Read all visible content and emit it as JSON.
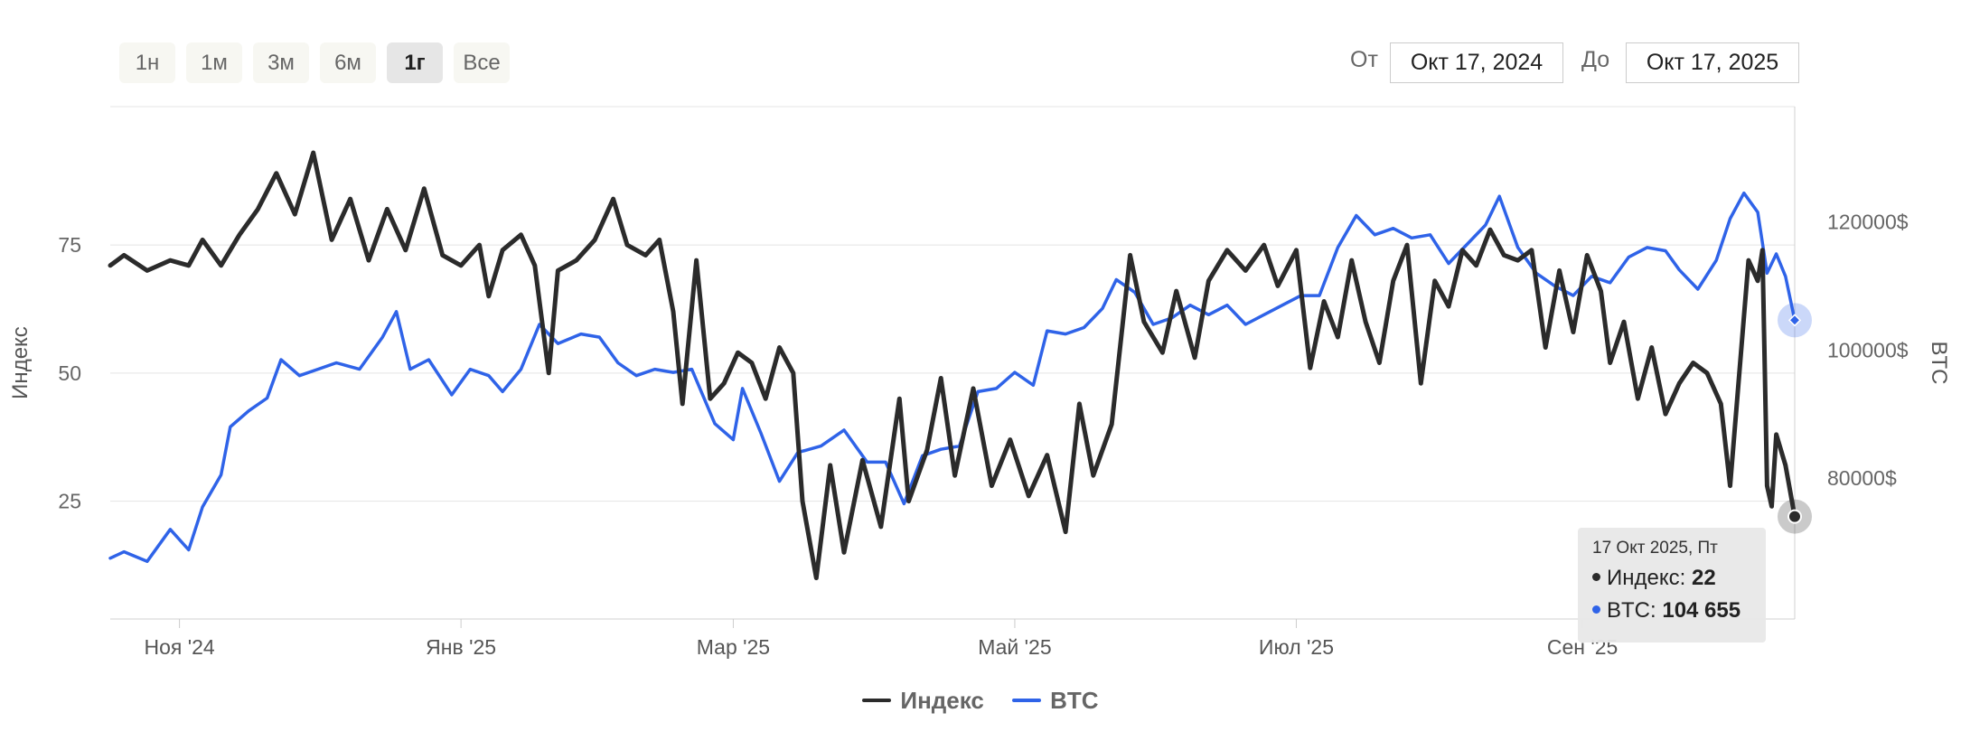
{
  "range_buttons": [
    {
      "label": "1н",
      "active": false
    },
    {
      "label": "1м",
      "active": false
    },
    {
      "label": "3м",
      "active": false
    },
    {
      "label": "6м",
      "active": false
    },
    {
      "label": "1г",
      "active": true
    },
    {
      "label": "Все",
      "active": false
    }
  ],
  "date_range": {
    "from_label": "От",
    "from_value": "Окт 17, 2024",
    "to_label": "До",
    "to_value": "Окт 17, 2025"
  },
  "colors": {
    "index": "#2b2b2b",
    "btc": "#2f63e8"
  },
  "tooltip": {
    "date": "17 Окт 2025, Пт",
    "index_label": "Индекс: ",
    "index_value": "22",
    "btc_label": "BTC: ",
    "btc_value": "104 655"
  },
  "chart_data": {
    "type": "line",
    "x_range": [
      "2024-10-17",
      "2025-10-17"
    ],
    "x_ticks": [
      {
        "date": "2024-11-01",
        "label": "Ноя '24"
      },
      {
        "date": "2025-01-01",
        "label": "Янв '25"
      },
      {
        "date": "2025-03-01",
        "label": "Мар '25"
      },
      {
        "date": "2025-05-01",
        "label": "Май '25"
      },
      {
        "date": "2025-07-01",
        "label": "Июл '25"
      },
      {
        "date": "2025-09-01",
        "label": "Сен '25"
      }
    ],
    "y_left": {
      "label": "Индекс",
      "ticks": [
        25,
        50,
        75
      ],
      "range": [
        2,
        102
      ]
    },
    "y_right": {
      "label": "BTC",
      "ticks": [
        80000,
        100000,
        120000
      ],
      "tick_labels": [
        "80000$",
        "100000$",
        "120000$"
      ],
      "range": [
        58000,
        138000
      ]
    },
    "grid": true,
    "legend": "bottom-center",
    "series": [
      {
        "name": "Индекс",
        "axis": "left",
        "points": [
          [
            "2024-10-17",
            71
          ],
          [
            "2024-10-20",
            73
          ],
          [
            "2024-10-25",
            70
          ],
          [
            "2024-10-30",
            72
          ],
          [
            "2024-11-03",
            71
          ],
          [
            "2024-11-06",
            76
          ],
          [
            "2024-11-10",
            71
          ],
          [
            "2024-11-14",
            77
          ],
          [
            "2024-11-18",
            82
          ],
          [
            "2024-11-22",
            89
          ],
          [
            "2024-11-26",
            81
          ],
          [
            "2024-11-30",
            93
          ],
          [
            "2024-12-04",
            76
          ],
          [
            "2024-12-08",
            84
          ],
          [
            "2024-12-12",
            72
          ],
          [
            "2024-12-16",
            82
          ],
          [
            "2024-12-20",
            74
          ],
          [
            "2024-12-24",
            86
          ],
          [
            "2024-12-28",
            73
          ],
          [
            "2025-01-01",
            71
          ],
          [
            "2025-01-05",
            75
          ],
          [
            "2025-01-07",
            65
          ],
          [
            "2025-01-10",
            74
          ],
          [
            "2025-01-14",
            77
          ],
          [
            "2025-01-17",
            71
          ],
          [
            "2025-01-20",
            50
          ],
          [
            "2025-01-22",
            70
          ],
          [
            "2025-01-26",
            72
          ],
          [
            "2025-01-30",
            76
          ],
          [
            "2025-02-03",
            84
          ],
          [
            "2025-02-06",
            75
          ],
          [
            "2025-02-10",
            73
          ],
          [
            "2025-02-13",
            76
          ],
          [
            "2025-02-16",
            62
          ],
          [
            "2025-02-18",
            44
          ],
          [
            "2025-02-21",
            72
          ],
          [
            "2025-02-24",
            45
          ],
          [
            "2025-02-27",
            48
          ],
          [
            "2025-03-02",
            54
          ],
          [
            "2025-03-05",
            52
          ],
          [
            "2025-03-08",
            45
          ],
          [
            "2025-03-11",
            55
          ],
          [
            "2025-03-14",
            50
          ],
          [
            "2025-03-16",
            25
          ],
          [
            "2025-03-19",
            10
          ],
          [
            "2025-03-22",
            32
          ],
          [
            "2025-03-25",
            15
          ],
          [
            "2025-03-29",
            33
          ],
          [
            "2025-04-02",
            20
          ],
          [
            "2025-04-06",
            45
          ],
          [
            "2025-04-08",
            25
          ],
          [
            "2025-04-12",
            35
          ],
          [
            "2025-04-15",
            49
          ],
          [
            "2025-04-18",
            30
          ],
          [
            "2025-04-22",
            47
          ],
          [
            "2025-04-26",
            28
          ],
          [
            "2025-04-30",
            37
          ],
          [
            "2025-05-04",
            26
          ],
          [
            "2025-05-08",
            34
          ],
          [
            "2025-05-12",
            19
          ],
          [
            "2025-05-15",
            44
          ],
          [
            "2025-05-18",
            30
          ],
          [
            "2025-05-22",
            40
          ],
          [
            "2025-05-26",
            73
          ],
          [
            "2025-05-29",
            60
          ],
          [
            "2025-06-02",
            54
          ],
          [
            "2025-06-05",
            66
          ],
          [
            "2025-06-09",
            53
          ],
          [
            "2025-06-12",
            68
          ],
          [
            "2025-06-16",
            74
          ],
          [
            "2025-06-20",
            70
          ],
          [
            "2025-06-24",
            75
          ],
          [
            "2025-06-27",
            67
          ],
          [
            "2025-07-01",
            74
          ],
          [
            "2025-07-04",
            51
          ],
          [
            "2025-07-07",
            64
          ],
          [
            "2025-07-10",
            57
          ],
          [
            "2025-07-13",
            72
          ],
          [
            "2025-07-16",
            60
          ],
          [
            "2025-07-19",
            52
          ],
          [
            "2025-07-22",
            68
          ],
          [
            "2025-07-25",
            75
          ],
          [
            "2025-07-28",
            48
          ],
          [
            "2025-07-31",
            68
          ],
          [
            "2025-08-03",
            63
          ],
          [
            "2025-08-06",
            74
          ],
          [
            "2025-08-09",
            71
          ],
          [
            "2025-08-12",
            78
          ],
          [
            "2025-08-15",
            73
          ],
          [
            "2025-08-18",
            72
          ],
          [
            "2025-08-21",
            74
          ],
          [
            "2025-08-24",
            55
          ],
          [
            "2025-08-27",
            70
          ],
          [
            "2025-08-30",
            58
          ],
          [
            "2025-09-02",
            73
          ],
          [
            "2025-09-05",
            66
          ],
          [
            "2025-09-07",
            52
          ],
          [
            "2025-09-10",
            60
          ],
          [
            "2025-09-13",
            45
          ],
          [
            "2025-09-16",
            55
          ],
          [
            "2025-09-19",
            42
          ],
          [
            "2025-09-22",
            48
          ],
          [
            "2025-09-25",
            52
          ],
          [
            "2025-09-28",
            50
          ],
          [
            "2025-10-01",
            44
          ],
          [
            "2025-10-03",
            28
          ],
          [
            "2025-10-05",
            50
          ],
          [
            "2025-10-07",
            72
          ],
          [
            "2025-10-09",
            68
          ],
          [
            "2025-10-10",
            74
          ],
          [
            "2025-10-11",
            28
          ],
          [
            "2025-10-12",
            24
          ],
          [
            "2025-10-13",
            38
          ],
          [
            "2025-10-15",
            32
          ],
          [
            "2025-10-17",
            22
          ]
        ]
      },
      {
        "name": "BTC",
        "axis": "right",
        "points": [
          [
            "2024-10-17",
            67500
          ],
          [
            "2024-10-20",
            68500
          ],
          [
            "2024-10-25",
            67000
          ],
          [
            "2024-10-30",
            72000
          ],
          [
            "2024-11-03",
            68800
          ],
          [
            "2024-11-06",
            75500
          ],
          [
            "2024-11-10",
            80500
          ],
          [
            "2024-11-12",
            88000
          ],
          [
            "2024-11-16",
            90500
          ],
          [
            "2024-11-20",
            92500
          ],
          [
            "2024-11-23",
            98500
          ],
          [
            "2024-11-27",
            96000
          ],
          [
            "2024-12-01",
            97000
          ],
          [
            "2024-12-05",
            98000
          ],
          [
            "2024-12-10",
            97000
          ],
          [
            "2024-12-15",
            102000
          ],
          [
            "2024-12-18",
            106000
          ],
          [
            "2024-12-21",
            97000
          ],
          [
            "2024-12-25",
            98500
          ],
          [
            "2024-12-30",
            93000
          ],
          [
            "2025-01-03",
            97000
          ],
          [
            "2025-01-07",
            96000
          ],
          [
            "2025-01-10",
            93500
          ],
          [
            "2025-01-14",
            97000
          ],
          [
            "2025-01-18",
            104000
          ],
          [
            "2025-01-22",
            101000
          ],
          [
            "2025-01-27",
            102500
          ],
          [
            "2025-01-31",
            102000
          ],
          [
            "2025-02-04",
            98000
          ],
          [
            "2025-02-08",
            96000
          ],
          [
            "2025-02-12",
            97000
          ],
          [
            "2025-02-16",
            96500
          ],
          [
            "2025-02-20",
            97000
          ],
          [
            "2025-02-25",
            88500
          ],
          [
            "2025-03-01",
            86000
          ],
          [
            "2025-03-03",
            94000
          ],
          [
            "2025-03-07",
            87000
          ],
          [
            "2025-03-11",
            79500
          ],
          [
            "2025-03-15",
            84000
          ],
          [
            "2025-03-20",
            85000
          ],
          [
            "2025-03-25",
            87500
          ],
          [
            "2025-03-30",
            82500
          ],
          [
            "2025-04-03",
            82500
          ],
          [
            "2025-04-07",
            76000
          ],
          [
            "2025-04-11",
            83500
          ],
          [
            "2025-04-15",
            84500
          ],
          [
            "2025-04-19",
            85000
          ],
          [
            "2025-04-23",
            93500
          ],
          [
            "2025-04-27",
            94000
          ],
          [
            "2025-05-01",
            96500
          ],
          [
            "2025-05-05",
            94500
          ],
          [
            "2025-05-08",
            103000
          ],
          [
            "2025-05-12",
            102500
          ],
          [
            "2025-05-16",
            103500
          ],
          [
            "2025-05-20",
            106500
          ],
          [
            "2025-05-23",
            111000
          ],
          [
            "2025-05-27",
            109000
          ],
          [
            "2025-05-31",
            104000
          ],
          [
            "2025-06-04",
            105000
          ],
          [
            "2025-06-08",
            107000
          ],
          [
            "2025-06-12",
            105500
          ],
          [
            "2025-06-16",
            107000
          ],
          [
            "2025-06-20",
            104000
          ],
          [
            "2025-06-24",
            105500
          ],
          [
            "2025-06-28",
            107000
          ],
          [
            "2025-07-02",
            108500
          ],
          [
            "2025-07-06",
            108500
          ],
          [
            "2025-07-10",
            116000
          ],
          [
            "2025-07-14",
            121000
          ],
          [
            "2025-07-18",
            118000
          ],
          [
            "2025-07-22",
            119000
          ],
          [
            "2025-07-26",
            117500
          ],
          [
            "2025-07-30",
            118000
          ],
          [
            "2025-08-03",
            113500
          ],
          [
            "2025-08-07",
            116500
          ],
          [
            "2025-08-11",
            119500
          ],
          [
            "2025-08-14",
            124000
          ],
          [
            "2025-08-18",
            116000
          ],
          [
            "2025-08-22",
            112000
          ],
          [
            "2025-08-26",
            110000
          ],
          [
            "2025-08-30",
            108500
          ],
          [
            "2025-09-03",
            111500
          ],
          [
            "2025-09-07",
            110500
          ],
          [
            "2025-09-11",
            114500
          ],
          [
            "2025-09-15",
            116000
          ],
          [
            "2025-09-19",
            115500
          ],
          [
            "2025-09-22",
            112500
          ],
          [
            "2025-09-26",
            109500
          ],
          [
            "2025-09-30",
            114000
          ],
          [
            "2025-10-03",
            120500
          ],
          [
            "2025-10-06",
            124500
          ],
          [
            "2025-10-09",
            121500
          ],
          [
            "2025-10-11",
            112000
          ],
          [
            "2025-10-13",
            115000
          ],
          [
            "2025-10-15",
            111500
          ],
          [
            "2025-10-17",
            104655
          ]
        ]
      }
    ]
  }
}
